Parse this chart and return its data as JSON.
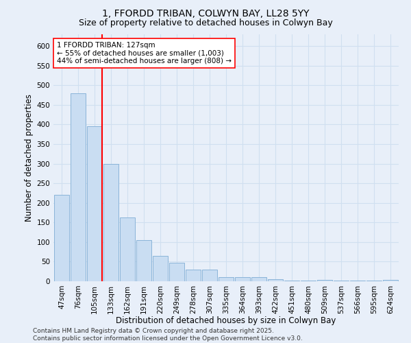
{
  "title_line1": "1, FFORDD TRIBAN, COLWYN BAY, LL28 5YY",
  "title_line2": "Size of property relative to detached houses in Colwyn Bay",
  "xlabel": "Distribution of detached houses by size in Colwyn Bay",
  "ylabel": "Number of detached properties",
  "categories": [
    "47sqm",
    "76sqm",
    "105sqm",
    "133sqm",
    "162sqm",
    "191sqm",
    "220sqm",
    "249sqm",
    "278sqm",
    "307sqm",
    "335sqm",
    "364sqm",
    "393sqm",
    "422sqm",
    "451sqm",
    "480sqm",
    "509sqm",
    "537sqm",
    "566sqm",
    "595sqm",
    "624sqm"
  ],
  "values": [
    220,
    480,
    395,
    300,
    163,
    105,
    65,
    47,
    30,
    30,
    10,
    10,
    10,
    5,
    1,
    1,
    3,
    1,
    1,
    1,
    3
  ],
  "bar_color": "#c9ddf2",
  "bar_edge_color": "#8ab4d9",
  "red_line_x": 2.45,
  "annotation_text": "1 FFORDD TRIBAN: 127sqm\n← 55% of detached houses are smaller (1,003)\n44% of semi-detached houses are larger (808) →",
  "annotation_box_facecolor": "white",
  "annotation_box_edgecolor": "red",
  "red_line_color": "red",
  "ylim": [
    0,
    630
  ],
  "yticks": [
    0,
    50,
    100,
    150,
    200,
    250,
    300,
    350,
    400,
    450,
    500,
    550,
    600
  ],
  "grid_color": "#d0dff0",
  "background_color": "#e8eff9",
  "footer_line1": "Contains HM Land Registry data © Crown copyright and database right 2025.",
  "footer_line2": "Contains public sector information licensed under the Open Government Licence v3.0.",
  "title_fontsize": 10,
  "subtitle_fontsize": 9,
  "axis_label_fontsize": 8.5,
  "tick_fontsize": 7.5,
  "annotation_fontsize": 7.5,
  "footer_fontsize": 6.5
}
